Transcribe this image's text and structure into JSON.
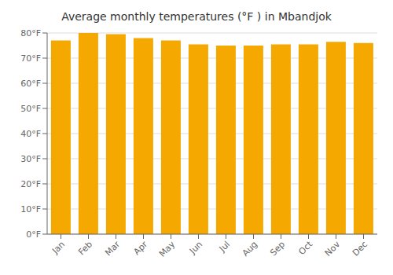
{
  "chart_data": {
    "type": "bar",
    "title": "Average monthly temperatures (°F ) in Mbandjok",
    "categories": [
      "Jan",
      "Feb",
      "Mar",
      "Apr",
      "May",
      "Jun",
      "Jul",
      "Aug",
      "Sep",
      "Oct",
      "Nov",
      "Dec"
    ],
    "values": [
      77,
      80,
      79.5,
      78,
      77,
      75.5,
      75,
      75,
      75.5,
      75.5,
      76.5,
      76
    ],
    "color": "#F5A800",
    "ylim": [
      0,
      80
    ],
    "yticks": [
      {
        "value": 0,
        "label": "0°F"
      },
      {
        "value": 10,
        "label": "10°F"
      },
      {
        "value": 20,
        "label": "20°F"
      },
      {
        "value": 30,
        "label": "30°F"
      },
      {
        "value": 40,
        "label": "40°F"
      },
      {
        "value": 50,
        "label": "50°F"
      },
      {
        "value": 60,
        "label": "60°F"
      },
      {
        "value": 70,
        "label": "70°F"
      },
      {
        "value": 80,
        "label": "80°F"
      }
    ],
    "grid": true
  }
}
